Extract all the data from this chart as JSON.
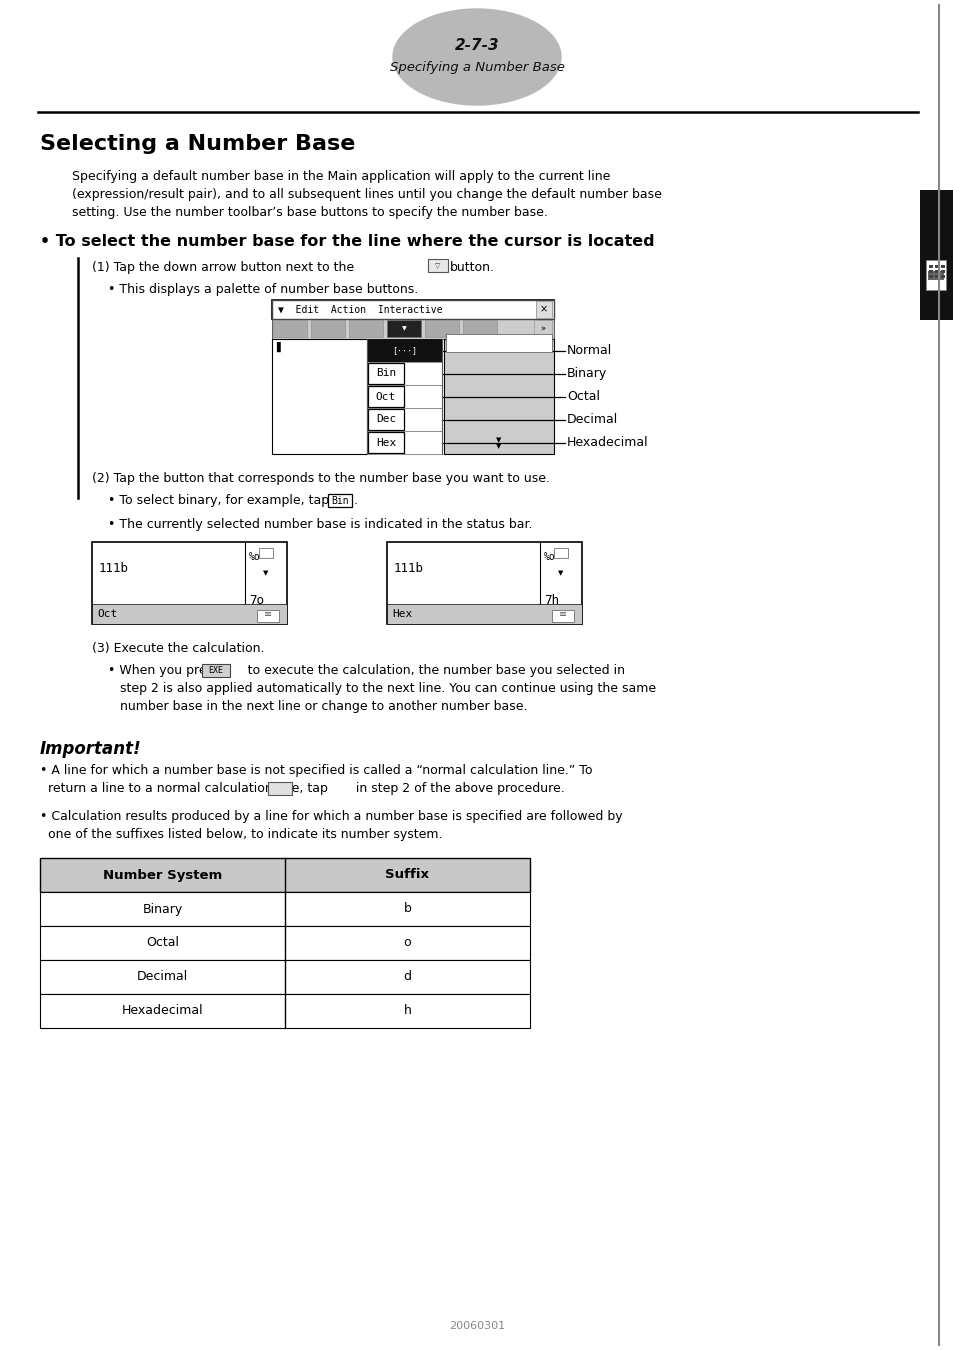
{
  "page_label": "2-7-3",
  "page_sublabel": "Specifying a Number Base",
  "section_title": "Selecting a Number Base",
  "intro_lines": [
    "Specifying a default number base in the Main application will apply to the current line",
    "(expression/result pair), and to all subsequent lines until you change the default number base",
    "setting. Use the number toolbar’s base buttons to specify the number base."
  ],
  "bullet_title": "• To select the number base for the line where the cursor is located",
  "step1_text": "(1) Tap the down arrow button next to the",
  "step1_post": "button.",
  "step1_bullet": "• This displays a palette of number base buttons.",
  "menu_bar": "▼ Edit  Action  Interactive",
  "menu_items": [
    "Bin",
    "Oct",
    "Dec",
    "Hex"
  ],
  "menu_labels": [
    "Normal",
    "Binary",
    "Octal",
    "Decimal",
    "Hexadecimal"
  ],
  "step2": "(2) Tap the button that corresponds to the number base you want to use.",
  "step2_b1_pre": "• To select binary, for example, tap",
  "step2_b2": "• The currently selected number base is indicated in the status bar.",
  "screens": [
    {
      "expr": "111b",
      "status": "7o",
      "label": "Oct"
    },
    {
      "expr": "111b",
      "status": "7h",
      "label": "Hex"
    }
  ],
  "step3": "(3) Execute the calculation.",
  "step3_b_lines": [
    "• When you press       to execute the calculation, the number base you selected in",
    "   step 2 is also applied automatically to the next line. You can continue using the same",
    "   number base in the next line or change to another number base."
  ],
  "important_title": "Important!",
  "imp1_lines": [
    "• A line for which a number base is not specified is called a “normal calculation line.” To",
    "  return a line to a normal calculation line, tap       in step 2 of the above procedure."
  ],
  "imp2_lines": [
    "• Calculation results produced by a line for which a number base is specified are followed by",
    "  one of the suffixes listed below, to indicate its number system."
  ],
  "table_headers": [
    "Number System",
    "Suffix"
  ],
  "table_rows": [
    [
      "Binary",
      "b"
    ],
    [
      "Octal",
      "o"
    ],
    [
      "Decimal",
      "d"
    ],
    [
      "Hexadecimal",
      "h"
    ]
  ],
  "footer": "20060301"
}
